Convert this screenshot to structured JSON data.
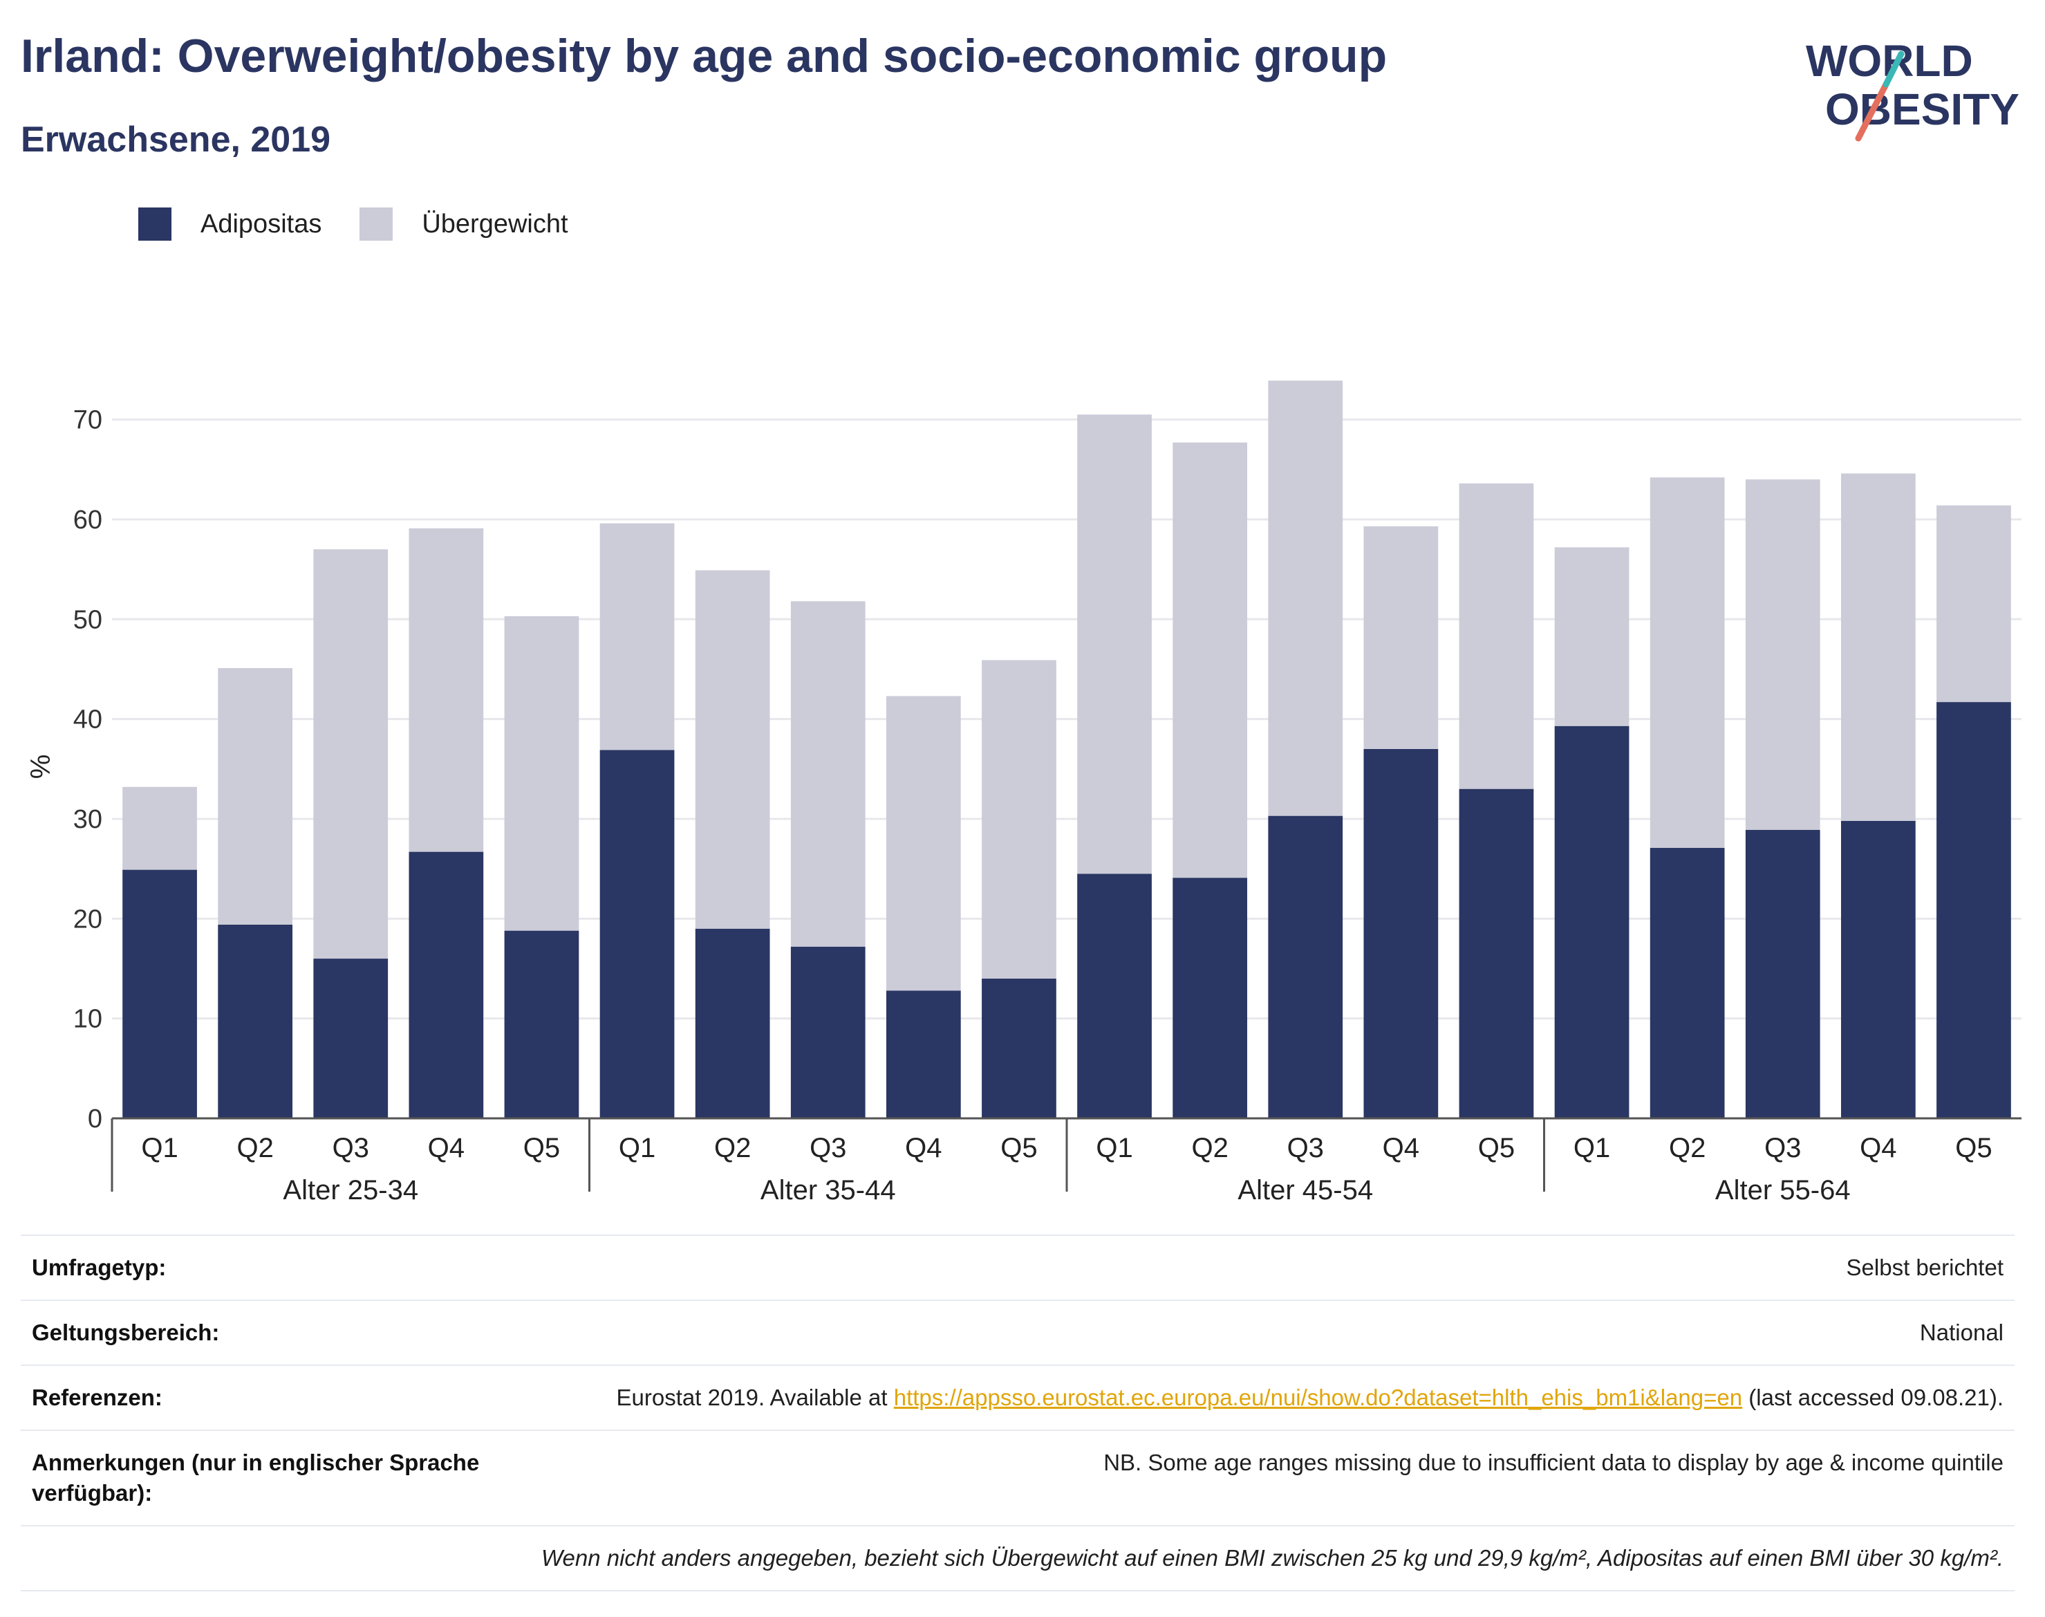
{
  "header": {
    "title": "Irland: Overweight/obesity by age and socio-economic group",
    "subtitle": "Erwachsene, 2019"
  },
  "logo": {
    "line1": "WORLD",
    "line2": "OBESITY"
  },
  "colors": {
    "obesity": "#2a3663",
    "overweight": "#cbccd8",
    "title": "#2b3561",
    "link": "#e0a50a"
  },
  "chart_data": {
    "type": "bar",
    "stacked": true,
    "ylabel": "%",
    "ylim": [
      0,
      76
    ],
    "yticks": [
      0,
      10,
      20,
      30,
      40,
      50,
      60,
      70
    ],
    "grid": true,
    "legend_position": "top-left",
    "groups": [
      {
        "label": "Alter 25-34",
        "categories": [
          "Q1",
          "Q2",
          "Q3",
          "Q4",
          "Q5"
        ]
      },
      {
        "label": "Alter 35-44",
        "categories": [
          "Q1",
          "Q2",
          "Q3",
          "Q4",
          "Q5"
        ]
      },
      {
        "label": "Alter 45-54",
        "categories": [
          "Q1",
          "Q2",
          "Q3",
          "Q4",
          "Q5"
        ]
      },
      {
        "label": "Alter 55-64",
        "categories": [
          "Q1",
          "Q2",
          "Q3",
          "Q4",
          "Q5"
        ]
      }
    ],
    "series": [
      {
        "name": "Adipositas",
        "values": [
          24.9,
          19.4,
          16.0,
          26.7,
          18.8,
          36.9,
          19.0,
          17.2,
          12.8,
          14.0,
          24.5,
          24.1,
          30.3,
          37.0,
          33.0,
          39.3,
          27.1,
          28.9,
          29.8,
          41.7
        ]
      },
      {
        "name": "Übergewicht",
        "values": [
          8.3,
          25.7,
          41.0,
          32.4,
          31.5,
          22.7,
          35.9,
          34.6,
          29.5,
          31.9,
          46.0,
          43.6,
          43.6,
          22.3,
          30.6,
          17.9,
          37.1,
          35.1,
          34.8,
          19.7
        ]
      }
    ]
  },
  "info": {
    "survey_label": "Umfragetyp:",
    "survey_value": "Selbst berichtet",
    "scope_label": "Geltungsbereich:",
    "scope_value": "National",
    "ref_label": "Referenzen:",
    "ref_prefix": "Eurostat 2019. Available at ",
    "ref_link": "https://appsso.eurostat.ec.europa.eu/nui/show.do?dataset=hlth_ehis_bm1i&lang=en",
    "ref_suffix": " (last accessed 09.08.21).",
    "notes_label": "Anmerkungen (nur in englischer Sprache verfügbar):",
    "notes_value": "NB. Some age ranges missing due to insufficient data to display by age & income quintile",
    "footnote": "Wenn nicht anders angegeben, bezieht sich Übergewicht auf einen BMI zwischen 25 kg und 29,9 kg/m², Adipositas auf einen BMI über 30 kg/m²."
  }
}
